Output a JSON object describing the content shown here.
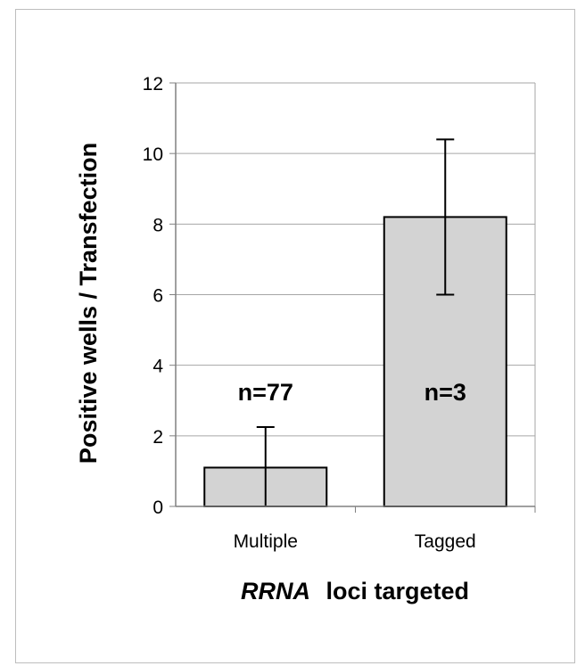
{
  "chart_data": {
    "type": "bar",
    "categories": [
      "Multiple",
      "Tagged"
    ],
    "values": [
      1.1,
      8.2
    ],
    "error_bars": [
      {
        "lower": 0,
        "upper": 2.25
      },
      {
        "lower": 6.0,
        "upper": 10.4
      }
    ],
    "annotations": [
      "n=77",
      "n=3"
    ],
    "ylabel": "Positive wells / Transfection",
    "xlabel_italic": "RRNA",
    "xlabel_rest": "loci targeted",
    "ylim": [
      0,
      12
    ],
    "yticks": [
      0,
      2,
      4,
      6,
      8,
      10,
      12
    ],
    "grid": true,
    "bar_color": "#d3d3d3",
    "bar_edge_color": "#000000"
  }
}
